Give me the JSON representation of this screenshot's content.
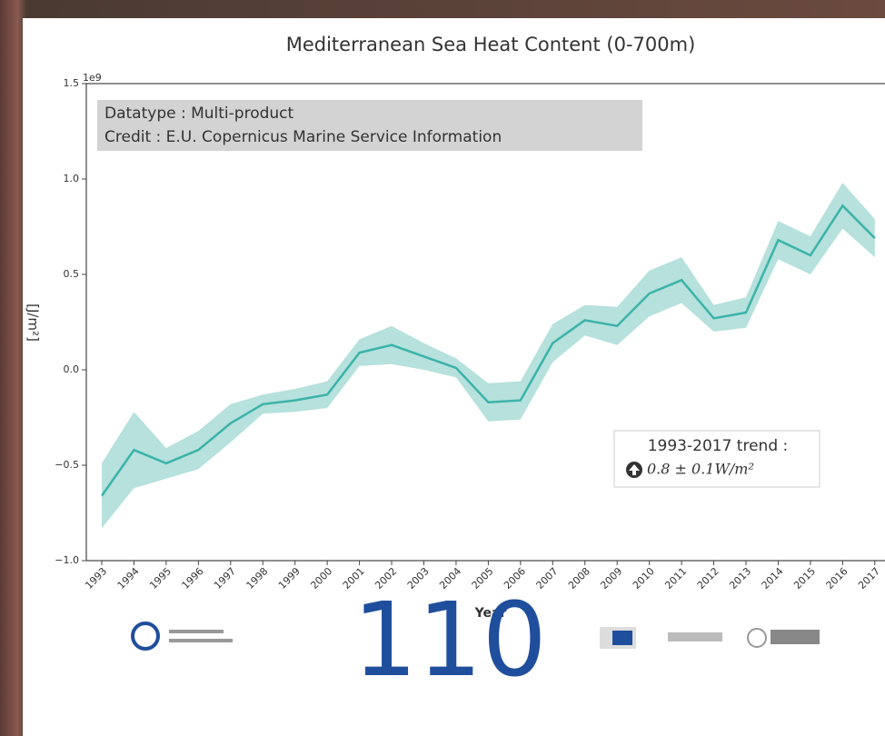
{
  "chart_data": {
    "type": "line",
    "title": "Mediterranean Sea Heat Content (0-700m)",
    "annotation": [
      "Datatype : Multi-product",
      "Credit : E.U. Copernicus Marine Service Information"
    ],
    "trend_label": "1993-2017 trend :",
    "trend_value": "0.8 ± 0.1W/m²",
    "xlabel": "Year",
    "ylabel": "[J/m²]",
    "y_offset_label": "1e9",
    "categories": [
      "1993",
      "1994",
      "1995",
      "1996",
      "1997",
      "1998",
      "1999",
      "2000",
      "2001",
      "2002",
      "2003",
      "2004",
      "2005",
      "2006",
      "2007",
      "2008",
      "2009",
      "2010",
      "2011",
      "2012",
      "2013",
      "2014",
      "2015",
      "2016",
      "2017"
    ],
    "values": [
      -0.66,
      -0.42,
      -0.49,
      -0.42,
      -0.28,
      -0.18,
      -0.16,
      -0.13,
      0.09,
      0.13,
      0.07,
      0.01,
      -0.17,
      -0.16,
      0.14,
      0.26,
      0.23,
      0.4,
      0.47,
      0.27,
      0.3,
      0.68,
      0.6,
      0.86,
      0.69
    ],
    "errors": [
      0.17,
      0.2,
      0.08,
      0.1,
      0.1,
      0.05,
      0.06,
      0.07,
      0.07,
      0.1,
      0.07,
      0.05,
      0.1,
      0.1,
      0.1,
      0.08,
      0.1,
      0.12,
      0.12,
      0.07,
      0.08,
      0.1,
      0.1,
      0.12,
      0.1
    ],
    "color": "#3bb3a8",
    "band_color": "#a9dcd6",
    "ylim": [
      -1.0,
      1.5
    ],
    "yticks": [
      {
        "value": -1.0,
        "label": "−1.0"
      },
      {
        "value": -0.5,
        "label": "−0.5"
      },
      {
        "value": 0.0,
        "label": "0.0"
      },
      {
        "value": 0.5,
        "label": "0.5"
      },
      {
        "value": 1.0,
        "label": "1.0"
      },
      {
        "value": 1.5,
        "label": "1.5"
      }
    ]
  },
  "page_number": "110"
}
